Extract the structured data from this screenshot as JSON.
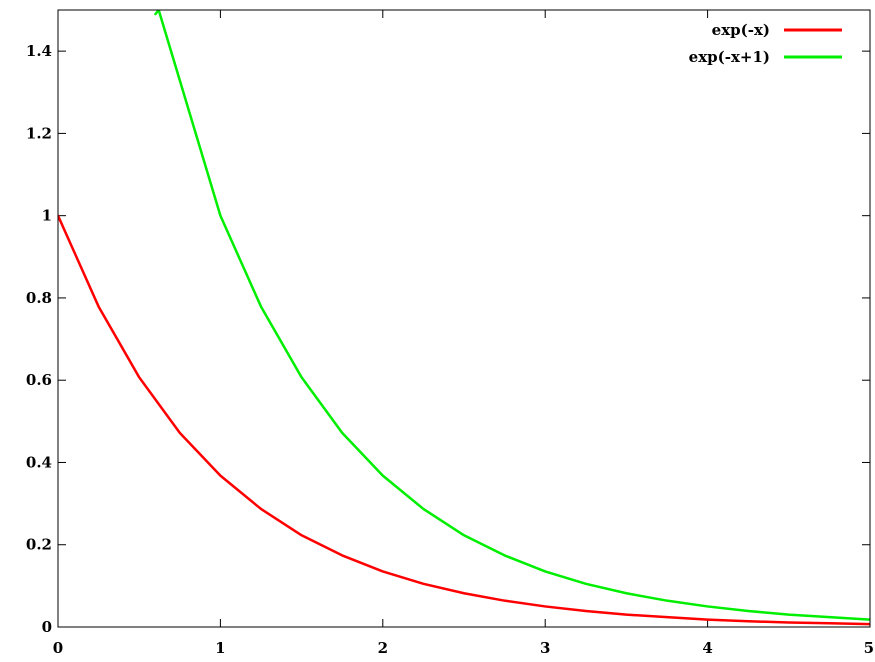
{
  "chart_data": {
    "type": "line",
    "title": "",
    "xlabel": "",
    "ylabel": "",
    "xlim": [
      0,
      5
    ],
    "ylim": [
      0,
      1.5
    ],
    "grid": false,
    "legend_position": "top-right",
    "x_ticks": [
      0,
      1,
      2,
      3,
      4,
      5
    ],
    "x_tick_labels": [
      "0",
      "1",
      "2",
      "3",
      "4",
      "5"
    ],
    "y_ticks": [
      0,
      0.2,
      0.4,
      0.6,
      0.8,
      1,
      1.2,
      1.4
    ],
    "y_tick_labels": [
      "0",
      "0.2",
      "0.4",
      "0.6",
      "0.8",
      "1",
      "1.2",
      "1.4"
    ],
    "series": [
      {
        "name": "exp(-x)",
        "color": "#ff0000",
        "x": [
          0,
          0.25,
          0.5,
          0.75,
          1,
          1.25,
          1.5,
          1.75,
          2,
          2.25,
          2.5,
          2.75,
          3,
          3.25,
          3.5,
          3.75,
          4,
          4.25,
          4.5,
          4.75,
          5
        ],
        "y": [
          1,
          0.779,
          0.607,
          0.472,
          0.368,
          0.287,
          0.223,
          0.174,
          0.135,
          0.105,
          0.082,
          0.064,
          0.05,
          0.039,
          0.03,
          0.024,
          0.018,
          0.014,
          0.011,
          0.009,
          0.007
        ]
      },
      {
        "name": "exp(-x+1)",
        "color": "#00ee00",
        "x": [
          0.6,
          0.62,
          1,
          1.25,
          1.5,
          1.75,
          2,
          2.25,
          2.5,
          2.75,
          3,
          3.25,
          3.5,
          3.75,
          4,
          4.25,
          4.5,
          4.75,
          5
        ],
        "y": [
          1.49,
          1.5,
          1,
          0.779,
          0.607,
          0.472,
          0.368,
          0.287,
          0.223,
          0.174,
          0.135,
          0.105,
          0.082,
          0.064,
          0.05,
          0.039,
          0.03,
          0.024,
          0.018
        ]
      }
    ]
  }
}
